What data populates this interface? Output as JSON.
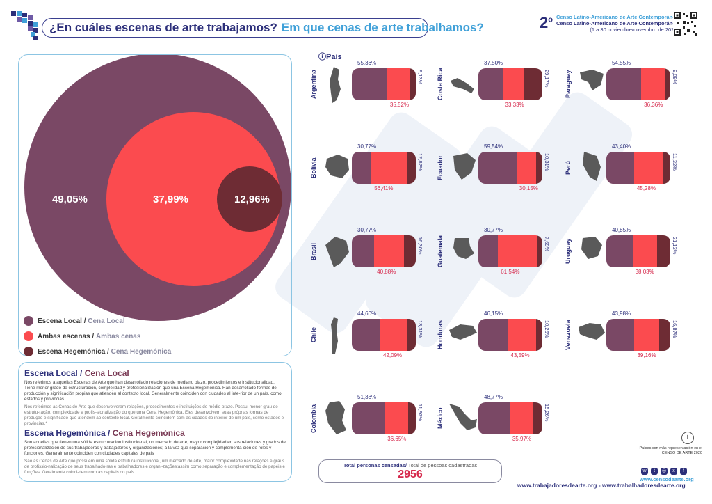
{
  "header": {
    "title_es": "¿En cuáles  escenas de arte trabajamos?",
    "title_pt": "Em que cenas de arte trabalhamos?",
    "census_number": "2",
    "census_sup": "o",
    "census_line_es": "Censo Latino-Americano de Arte Contemporáneo",
    "census_line_pt": "Censo Latino-Americano de Arte Contemporânea",
    "census_dates": "(1 a 30 noviembre/novembro de 2020)"
  },
  "colors": {
    "local": "#7a4865",
    "ambas": "#fb4b4f",
    "hegemonica": "#6e2c34",
    "accent": "#2c2f7a",
    "accent_light": "#3fa0d8"
  },
  "legend": [
    {
      "es": "Escena Local",
      "pt": "Cena Local"
    },
    {
      "es": "Ambas escenas",
      "pt": "Ambas cenas"
    },
    {
      "es": "Escena Hegemónica",
      "pt": "Cena Hegemónica"
    }
  ],
  "definitions": {
    "local_head_es": "Escena Local",
    "local_head_pt": "Cena Local",
    "local_es": "Nos referimos a aquellas Escenas de Arte que han desarrollado relaciones de mediano plazo, procedimientos e institucionalidad. Tiene menor grado de estructuración, complejidad y profesionalización que una Escena Hegemónica. Han desarrollado formas de producción y significación propias que atienden al contexto local. Generalmente coinciden con ciudades al inte-rior de un país, como estados y provincias.",
    "local_pt": "Nos referimos as Cenas de Arte que desenvolveram relações, procedimentos e instituições de médio prazo. Possui menor grau de estrutu-ração, complexidade e profis-sionalização do que uma Cena Hegemônica. Eles desenvolvem suas próprias formas de produção e significado que atendem ao contexto local. Geralmente coincidem com as cidades do interior de um país, como     estados e províncias.*",
    "heg_head_es": "Escena Hegemónica",
    "heg_head_pt": "Cena Hegemónica",
    "heg_es": "Son aquellas que tienen una sólida estructuración institucio-nal, un mercado de arte, mayor complejidad en sus relaciones y grados de profesionalización de sus trabajadoras y trabajadores y organizaciones; a la vez que separación y complementa-ción de roles y funciones. Generalmente coinciden con ciudades capitales de país",
    "heg_pt": "São as Cenas de Arte que possuem uma sólida estrutura institucional, um mercado de arte, maior complexidade nas relações e graus de profissio-nalização de seus trabalhado-ras e trabalhadores e organi-zações;assim como separação e complementação de papéis e funções. Geralmente coinci-dem com as capitais do país."
  },
  "country_section_label": "País",
  "info_note": "Países con más representación en el CENSO DE ARTE 2020",
  "total": {
    "label_es": "Total personas censadas/",
    "label_pt": " Total de pessoas cadastradas",
    "value": "2956"
  },
  "footer": {
    "site_censo": "www.censodearte.org",
    "sites": "www.trabajadoresdearte.org - www.trabalhadoresdearte.org"
  },
  "chart_data": [
    {
      "type": "bubble",
      "title": "",
      "categories": [
        "Escena Local / Cena Local",
        "Ambas escenas / Ambas cenas",
        "Escena Hegemónica / Cena Hegemónica"
      ],
      "values": [
        49.05,
        37.99,
        12.96
      ],
      "labels": [
        "49,05%",
        "37,99%",
        "12,96%"
      ]
    },
    {
      "type": "bar",
      "stacked": true,
      "series_order": [
        "Escena Local",
        "Ambas escenas",
        "Escena Hegemónica"
      ],
      "countries": [
        {
          "name": "Argentina",
          "values": [
            55.36,
            35.52,
            9.13
          ],
          "labels": [
            "55,36%",
            "35,52%",
            "9,13%"
          ]
        },
        {
          "name": "Costa Rica",
          "values": [
            37.5,
            33.33,
            29.17
          ],
          "labels": [
            "37,50%",
            "33,33%",
            "29,17%"
          ]
        },
        {
          "name": "Paraguay",
          "values": [
            54.55,
            36.36,
            9.09
          ],
          "labels": [
            "54,55%",
            "36,36%",
            "9,09%"
          ]
        },
        {
          "name": "Bolivia",
          "values": [
            30.77,
            56.41,
            12.82
          ],
          "labels": [
            "30,77%",
            "56,41%",
            "12,82%"
          ]
        },
        {
          "name": "Ecuador",
          "values": [
            59.54,
            30.15,
            10.31
          ],
          "labels": [
            "59,54%",
            "30,15%",
            "10,31%"
          ]
        },
        {
          "name": "Perú",
          "values": [
            43.4,
            45.28,
            11.32
          ],
          "labels": [
            "43,40%",
            "45,28%",
            "11,32%"
          ]
        },
        {
          "name": "Brasil",
          "values": [
            30.77,
            40.88,
            16.3
          ],
          "labels": [
            "30,77%",
            "40,88%",
            "16,30%"
          ]
        },
        {
          "name": "Guatemala",
          "values": [
            30.77,
            61.54,
            7.69
          ],
          "labels": [
            "30,77%",
            "61,54%",
            "7,69%"
          ]
        },
        {
          "name": "Uruguay",
          "values": [
            40.85,
            38.03,
            21.13
          ],
          "labels": [
            "40,85%",
            "38,03%",
            "21,13%"
          ]
        },
        {
          "name": "Chile",
          "values": [
            44.6,
            42.09,
            13.31
          ],
          "labels": [
            "44,60%",
            "42,09%",
            "13,31%"
          ]
        },
        {
          "name": "Honduras",
          "values": [
            46.15,
            43.59,
            10.26
          ],
          "labels": [
            "46,15%",
            "43,59%",
            "10,26%"
          ]
        },
        {
          "name": "Venezuela",
          "values": [
            43.98,
            39.16,
            16.87
          ],
          "labels": [
            "43,98%",
            "39,16%",
            "16,87%"
          ]
        },
        {
          "name": "Colombia",
          "values": [
            51.38,
            36.65,
            11.97
          ],
          "labels": [
            "51,38%",
            "36,65%",
            "11,97%"
          ]
        },
        {
          "name": "México",
          "values": [
            48.77,
            35.97,
            15.26
          ],
          "labels": [
            "48,77%",
            "35,97%",
            "15,26%"
          ]
        }
      ]
    }
  ]
}
